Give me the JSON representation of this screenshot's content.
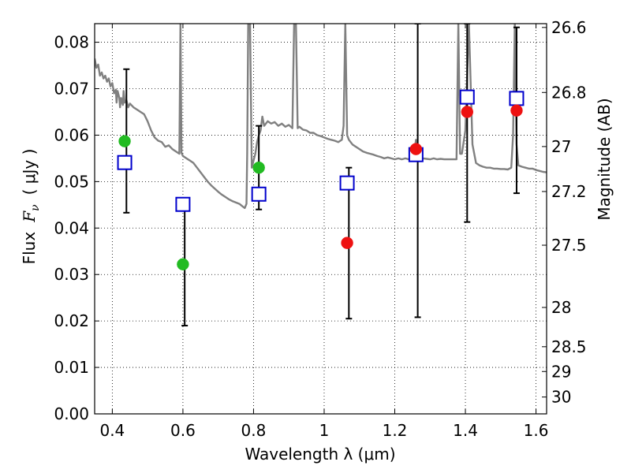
{
  "chart_data": {
    "type": "scatter",
    "xlabel": "Wavelength  λ (μm)",
    "ylabel": "Flux  F_ν  ( μJy )",
    "ylabel_parts": {
      "prefix": "Flux",
      "symbol": "F",
      "subscript": "ν",
      "unit": "( μJy )"
    },
    "y2label": "Magnitude (AB)",
    "xlim": [
      0.35,
      1.63
    ],
    "ylim": [
      0.0,
      0.084
    ],
    "grid": true,
    "grid_style": "dotted",
    "x_ticks": [
      0.4,
      0.6,
      0.8,
      1.0,
      1.2,
      1.4,
      1.6
    ],
    "x_tick_labels": [
      "0.4",
      "0.6",
      "0.8",
      "1",
      "1.2",
      "1.4",
      "1.6"
    ],
    "y_ticks": [
      0.0,
      0.01,
      0.02,
      0.03,
      0.04,
      0.05,
      0.06,
      0.07,
      0.08
    ],
    "y_tick_labels": [
      "0.00",
      "0.01",
      "0.02",
      "0.03",
      "0.04",
      "0.05",
      "0.06",
      "0.07",
      "0.08"
    ],
    "y2_ticks": [
      {
        "label": "26.6",
        "value": 26.6
      },
      {
        "label": "26.8",
        "value": 26.8
      },
      {
        "label": "27",
        "value": 27.0
      },
      {
        "label": "27.2",
        "value": 27.2
      },
      {
        "label": "27.5",
        "value": 27.5
      },
      {
        "label": "28",
        "value": 28.0
      },
      {
        "label": "28.5",
        "value": 28.5
      },
      {
        "label": "29",
        "value": 29.0
      },
      {
        "label": "30",
        "value": 30.0
      }
    ],
    "series": [
      {
        "kind": "line",
        "color": "#808080",
        "points": [
          [
            0.35,
            0.0765
          ],
          [
            0.355,
            0.0745
          ],
          [
            0.36,
            0.0752
          ],
          [
            0.365,
            0.0728
          ],
          [
            0.37,
            0.0735
          ],
          [
            0.375,
            0.0722
          ],
          [
            0.38,
            0.0728
          ],
          [
            0.385,
            0.0715
          ],
          [
            0.39,
            0.0722
          ],
          [
            0.395,
            0.0705
          ],
          [
            0.4,
            0.0712
          ],
          [
            0.405,
            0.069
          ],
          [
            0.41,
            0.0698
          ],
          [
            0.412,
            0.067
          ],
          [
            0.415,
            0.0695
          ],
          [
            0.42,
            0.068
          ],
          [
            0.422,
            0.066
          ],
          [
            0.425,
            0.068
          ],
          [
            0.43,
            0.0665
          ],
          [
            0.432,
            0.0695
          ],
          [
            0.435,
            0.067
          ],
          [
            0.44,
            0.0675
          ],
          [
            0.445,
            0.066
          ],
          [
            0.45,
            0.0668
          ],
          [
            0.46,
            0.066
          ],
          [
            0.47,
            0.0655
          ],
          [
            0.48,
            0.065
          ],
          [
            0.49,
            0.0645
          ],
          [
            0.5,
            0.063
          ],
          [
            0.51,
            0.061
          ],
          [
            0.52,
            0.0595
          ],
          [
            0.53,
            0.0588
          ],
          [
            0.54,
            0.0585
          ],
          [
            0.55,
            0.0575
          ],
          [
            0.56,
            0.0578
          ],
          [
            0.57,
            0.057
          ],
          [
            0.58,
            0.0565
          ],
          [
            0.59,
            0.056
          ],
          [
            0.593,
            0.084
          ],
          [
            0.596,
            0.0562
          ],
          [
            0.6,
            0.0555
          ],
          [
            0.61,
            0.055
          ],
          [
            0.62,
            0.0545
          ],
          [
            0.63,
            0.054
          ],
          [
            0.64,
            0.053
          ],
          [
            0.65,
            0.052
          ],
          [
            0.66,
            0.051
          ],
          [
            0.67,
            0.05
          ],
          [
            0.68,
            0.0492
          ],
          [
            0.69,
            0.0485
          ],
          [
            0.7,
            0.0478
          ],
          [
            0.71,
            0.0472
          ],
          [
            0.72,
            0.0467
          ],
          [
            0.73,
            0.0462
          ],
          [
            0.74,
            0.0458
          ],
          [
            0.75,
            0.0455
          ],
          [
            0.76,
            0.0452
          ],
          [
            0.77,
            0.0446
          ],
          [
            0.775,
            0.0443
          ],
          [
            0.78,
            0.0452
          ],
          [
            0.782,
            0.056
          ],
          [
            0.785,
            0.084
          ],
          [
            0.79,
            0.084
          ],
          [
            0.795,
            0.053
          ],
          [
            0.8,
            0.0545
          ],
          [
            0.805,
            0.056
          ],
          [
            0.81,
            0.0585
          ],
          [
            0.815,
            0.06
          ],
          [
            0.82,
            0.061
          ],
          [
            0.825,
            0.064
          ],
          [
            0.83,
            0.062
          ],
          [
            0.84,
            0.063
          ],
          [
            0.85,
            0.0625
          ],
          [
            0.86,
            0.0628
          ],
          [
            0.87,
            0.062
          ],
          [
            0.88,
            0.0625
          ],
          [
            0.89,
            0.0618
          ],
          [
            0.9,
            0.0622
          ],
          [
            0.91,
            0.0615
          ],
          [
            0.915,
            0.084
          ],
          [
            0.92,
            0.084
          ],
          [
            0.925,
            0.0615
          ],
          [
            0.93,
            0.0618
          ],
          [
            0.94,
            0.0612
          ],
          [
            0.95,
            0.061
          ],
          [
            0.96,
            0.0605
          ],
          [
            0.97,
            0.0605
          ],
          [
            0.98,
            0.06
          ],
          [
            0.99,
            0.0598
          ],
          [
            1.0,
            0.0595
          ],
          [
            1.01,
            0.0592
          ],
          [
            1.02,
            0.059
          ],
          [
            1.03,
            0.0588
          ],
          [
            1.04,
            0.0585
          ],
          [
            1.05,
            0.059
          ],
          [
            1.055,
            0.062
          ],
          [
            1.06,
            0.084
          ],
          [
            1.065,
            0.06
          ],
          [
            1.07,
            0.059
          ],
          [
            1.08,
            0.058
          ],
          [
            1.09,
            0.0575
          ],
          [
            1.1,
            0.057
          ],
          [
            1.11,
            0.0565
          ],
          [
            1.12,
            0.0562
          ],
          [
            1.13,
            0.056
          ],
          [
            1.14,
            0.0558
          ],
          [
            1.15,
            0.0555
          ],
          [
            1.16,
            0.0553
          ],
          [
            1.17,
            0.055
          ],
          [
            1.18,
            0.0552
          ],
          [
            1.19,
            0.055
          ],
          [
            1.2,
            0.0548
          ],
          [
            1.21,
            0.055
          ],
          [
            1.22,
            0.0548
          ],
          [
            1.23,
            0.055
          ],
          [
            1.24,
            0.0548
          ],
          [
            1.25,
            0.055
          ],
          [
            1.255,
            0.056
          ],
          [
            1.26,
            0.059
          ],
          [
            1.265,
            0.056
          ],
          [
            1.27,
            0.0552
          ],
          [
            1.28,
            0.055
          ],
          [
            1.29,
            0.0549
          ],
          [
            1.3,
            0.0548
          ],
          [
            1.31,
            0.055
          ],
          [
            1.32,
            0.0548
          ],
          [
            1.33,
            0.0549
          ],
          [
            1.34,
            0.0548
          ],
          [
            1.35,
            0.0548
          ],
          [
            1.36,
            0.0548
          ],
          [
            1.37,
            0.0548
          ],
          [
            1.375,
            0.0548
          ],
          [
            1.38,
            0.084
          ],
          [
            1.385,
            0.056
          ],
          [
            1.39,
            0.056
          ],
          [
            1.4,
            0.061
          ],
          [
            1.41,
            0.084
          ],
          [
            1.42,
            0.058
          ],
          [
            1.43,
            0.054
          ],
          [
            1.44,
            0.0535
          ],
          [
            1.45,
            0.0532
          ],
          [
            1.46,
            0.053
          ],
          [
            1.47,
            0.053
          ],
          [
            1.48,
            0.0528
          ],
          [
            1.49,
            0.0528
          ],
          [
            1.5,
            0.0527
          ],
          [
            1.51,
            0.0527
          ],
          [
            1.52,
            0.0526
          ],
          [
            1.53,
            0.053
          ],
          [
            1.535,
            0.06
          ],
          [
            1.54,
            0.084
          ],
          [
            1.545,
            0.058
          ],
          [
            1.55,
            0.0535
          ],
          [
            1.56,
            0.0532
          ],
          [
            1.57,
            0.053
          ],
          [
            1.58,
            0.0528
          ],
          [
            1.59,
            0.0528
          ],
          [
            1.6,
            0.0525
          ],
          [
            1.61,
            0.0523
          ],
          [
            1.62,
            0.0521
          ],
          [
            1.63,
            0.052
          ]
        ]
      },
      {
        "kind": "errorbar",
        "color": "#000000",
        "points": [
          {
            "x": 0.44,
            "low": 0.0433,
            "high": 0.0742
          },
          {
            "x": 0.605,
            "low": 0.019,
            "high": 0.0452
          },
          {
            "x": 0.815,
            "low": 0.044,
            "high": 0.062
          },
          {
            "x": 1.07,
            "low": 0.0205,
            "high": 0.053
          },
          {
            "x": 1.265,
            "low": 0.0208,
            "high": 0.084
          },
          {
            "x": 1.405,
            "low": 0.0413,
            "high": 0.084
          },
          {
            "x": 1.545,
            "low": 0.0475,
            "high": 0.0832
          }
        ]
      },
      {
        "kind": "square",
        "color": "#0000cc",
        "points": [
          [
            0.435,
            0.0541
          ],
          [
            0.6,
            0.0451
          ],
          [
            0.815,
            0.0473
          ],
          [
            1.065,
            0.0497
          ],
          [
            1.26,
            0.0558
          ],
          [
            1.405,
            0.0682
          ],
          [
            1.545,
            0.0679
          ]
        ]
      },
      {
        "kind": "circle",
        "color": "#22bb22",
        "points": [
          [
            0.435,
            0.0587
          ],
          [
            0.6,
            0.0322
          ],
          [
            0.815,
            0.053
          ]
        ]
      },
      {
        "kind": "circle",
        "color": "#ee1111",
        "points": [
          [
            1.065,
            0.0368
          ],
          [
            1.26,
            0.057
          ],
          [
            1.405,
            0.065
          ],
          [
            1.545,
            0.0653
          ]
        ]
      }
    ]
  }
}
